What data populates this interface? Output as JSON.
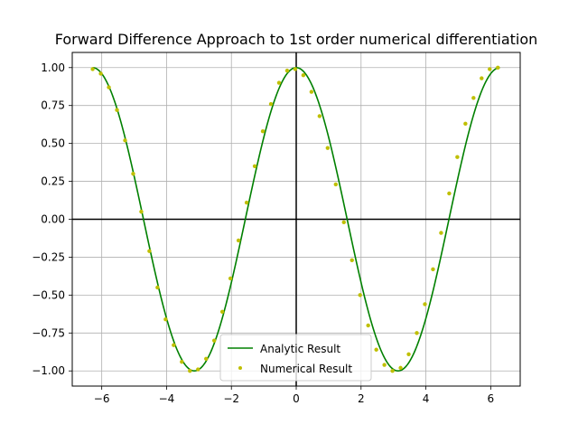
{
  "chart_data": {
    "type": "line",
    "title": "Forward Difference Approach to 1st order numerical differentiation",
    "xlabel": "",
    "ylabel": "",
    "xlim": [
      -6.91,
      6.91
    ],
    "ylim": [
      -1.1,
      1.1
    ],
    "grid": true,
    "legend_position": "lower-center",
    "x_ticks": [
      -6,
      -4,
      -2,
      0,
      2,
      4,
      6
    ],
    "x_tick_labels": [
      "−6",
      "−4",
      "−2",
      "0",
      "2",
      "4",
      "6"
    ],
    "y_ticks": [
      -1.0,
      -0.75,
      -0.5,
      -0.25,
      0.0,
      0.25,
      0.5,
      0.75,
      1.0
    ],
    "y_tick_labels": [
      "−1.00",
      "−0.75",
      "−0.50",
      "−0.25",
      "0.00",
      "0.25",
      "0.50",
      "0.75",
      "1.00"
    ],
    "series": [
      {
        "name": "Analytic Result",
        "kind": "line",
        "color": "#008000",
        "function": "cos(x)",
        "x_range": [
          -6.2832,
          6.2832
        ]
      },
      {
        "name": "Numerical Result",
        "kind": "points",
        "color": "#bfbf00",
        "x": [
          -6.28,
          -6.03,
          -5.78,
          -5.53,
          -5.28,
          -5.03,
          -4.78,
          -4.53,
          -4.28,
          -4.03,
          -3.78,
          -3.53,
          -3.28,
          -3.03,
          -2.78,
          -2.53,
          -2.28,
          -2.03,
          -1.78,
          -1.53,
          -1.28,
          -1.03,
          -0.78,
          -0.53,
          -0.28,
          -0.03,
          0.22,
          0.47,
          0.72,
          0.97,
          1.22,
          1.47,
          1.72,
          1.97,
          2.22,
          2.47,
          2.72,
          2.97,
          3.22,
          3.47,
          3.72,
          3.97,
          4.22,
          4.47,
          4.72,
          4.97,
          5.22,
          5.47,
          5.72,
          5.97,
          6.22
        ],
        "y": [
          0.99,
          0.96,
          0.87,
          0.72,
          0.52,
          0.3,
          0.05,
          -0.21,
          -0.45,
          -0.66,
          -0.83,
          -0.94,
          -1.0,
          -0.99,
          -0.92,
          -0.8,
          -0.61,
          -0.39,
          -0.14,
          0.11,
          0.35,
          0.58,
          0.76,
          0.9,
          0.98,
          0.99,
          0.95,
          0.84,
          0.68,
          0.47,
          0.23,
          -0.02,
          -0.27,
          -0.5,
          -0.7,
          -0.86,
          -0.96,
          -1.0,
          -0.98,
          -0.89,
          -0.75,
          -0.56,
          -0.33,
          -0.09,
          0.17,
          0.41,
          0.63,
          0.8,
          0.93,
          0.99,
          1.0
        ]
      }
    ]
  }
}
